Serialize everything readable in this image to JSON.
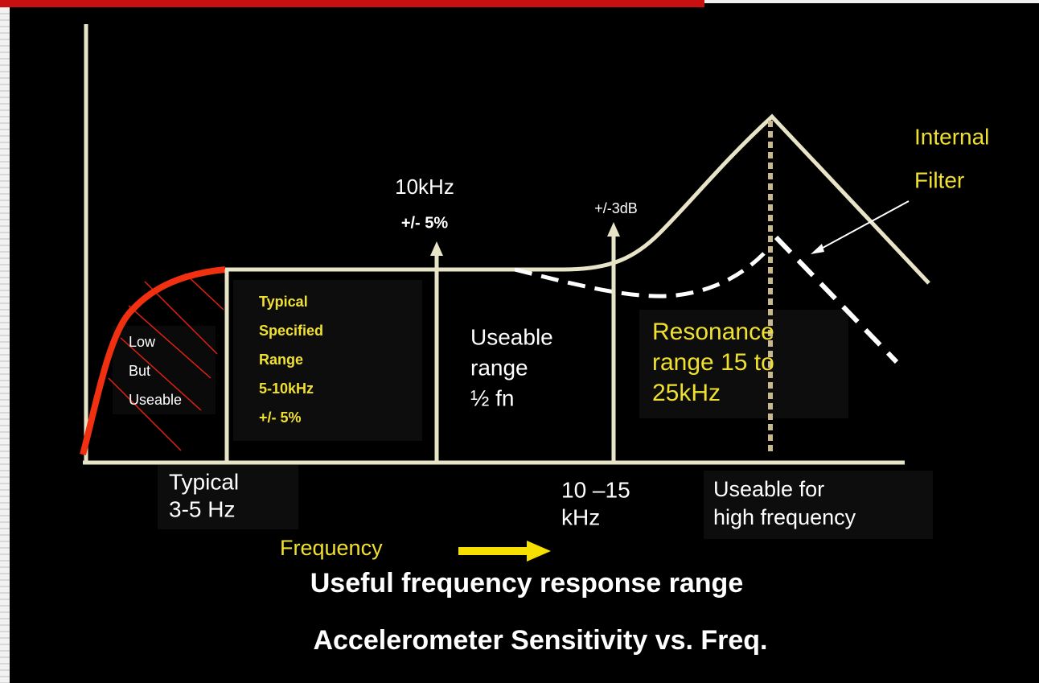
{
  "labels": [
    {
      "lines": [
        "Internal",
        "Filter"
      ]
    },
    {
      "lines": [
        "10kHz",
        "+/- 5%"
      ]
    },
    {
      "lines": [
        "+/-3dB"
      ]
    },
    {
      "lines": [
        "Typical",
        "Specified",
        "Range",
        "5-10kHz",
        "+/- 5%"
      ]
    },
    {
      "lines": [
        "Low",
        "But",
        "Useable"
      ]
    },
    {
      "lines": [
        "Useable",
        "range",
        "½ fn"
      ]
    },
    {
      "lines": [
        "Resonance",
        "range 15 to",
        "25kHz"
      ]
    },
    {
      "lines": [
        "Typical",
        "3-5 Hz"
      ]
    },
    {
      "lines": [
        "10 –15",
        "kHz"
      ]
    },
    {
      "lines": [
        "Useable for",
        "high frequency"
      ]
    },
    {
      "lines": [
        "Frequency"
      ]
    }
  ],
  "title": "Useful frequency response range",
  "subtitle": "Accelerometer Sensitivity vs. Freq."
}
